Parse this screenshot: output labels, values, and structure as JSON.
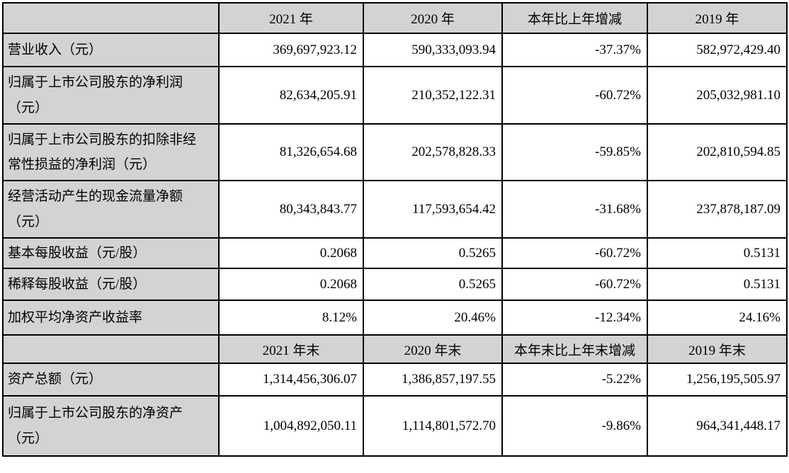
{
  "table": {
    "sections": [
      {
        "header": [
          "",
          "2021 年",
          "2020 年",
          "本年比上年增减",
          "2019 年"
        ],
        "rows": [
          {
            "label": "营业收入（元）",
            "values": [
              "369,697,923.12",
              "590,333,093.94",
              "-37.37%",
              "582,972,429.40"
            ]
          },
          {
            "label": "归属于上市公司股东的净利润\n（元）",
            "values": [
              "82,634,205.91",
              "210,352,122.31",
              "-60.72%",
              "205,032,981.10"
            ]
          },
          {
            "label": "归属于上市公司股东的扣除非经\n常性损益的净利润（元）",
            "values": [
              "81,326,654.68",
              "202,578,828.33",
              "-59.85%",
              "202,810,594.85"
            ]
          },
          {
            "label": "经营活动产生的现金流量净额\n（元）",
            "values": [
              "80,343,843.77",
              "117,593,654.42",
              "-31.68%",
              "237,878,187.09"
            ]
          },
          {
            "label": "基本每股收益（元/股）",
            "values": [
              "0.2068",
              "0.5265",
              "-60.72%",
              "0.5131"
            ]
          },
          {
            "label": "稀释每股收益（元/股）",
            "values": [
              "0.2068",
              "0.5265",
              "-60.72%",
              "0.5131"
            ]
          },
          {
            "label": "加权平均净资产收益率",
            "values": [
              "8.12%",
              "20.46%",
              "-12.34%",
              "24.16%"
            ]
          }
        ]
      },
      {
        "header": [
          "",
          "2021 年末",
          "2020 年末",
          "本年末比上年末增减",
          "2019 年末"
        ],
        "rows": [
          {
            "label": "资产总额（元）",
            "values": [
              "1,314,456,306.07",
              "1,386,857,197.55",
              "-5.22%",
              "1,256,195,505.97"
            ]
          },
          {
            "label": "归属于上市公司股东的净资产\n（元）",
            "values": [
              "1,004,892,050.11",
              "1,114,801,572.70",
              "-9.86%",
              "964,341,448.17"
            ]
          }
        ]
      }
    ],
    "colors": {
      "shading": "#d3d3d3",
      "border": "#000000",
      "text": "#000000"
    }
  }
}
